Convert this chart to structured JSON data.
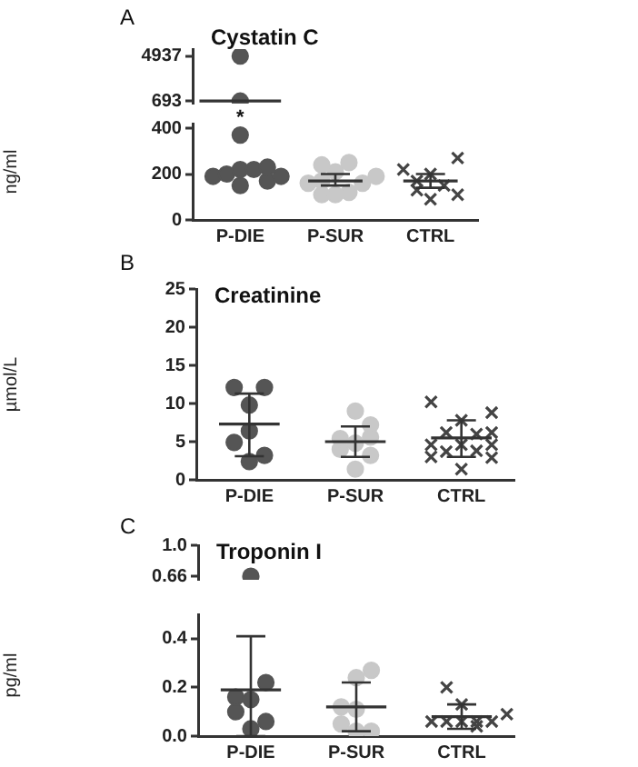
{
  "chart_data": [
    {
      "type": "scatter",
      "title": "Cystatin C",
      "annotations": [
        "A",
        {
          "text": "*",
          "x": "P-DIE",
          "y": 693
        }
      ],
      "categories": [
        null,
        null,
        null,
        "P-DIE",
        null,
        null,
        null,
        null,
        null,
        null,
        "P-SUR",
        null,
        null,
        null,
        null,
        null,
        null,
        "CTRL",
        null,
        null,
        null
      ],
      "ylim": [
        450,
        5600
      ],
      "yticks": [
        693,
        4937
      ],
      "tick_labels": "y",
      "series": [
        {
          "color": "#555555",
          "marker": "circle",
          "values": [
            null,
            null,
            null,
            4937,
            null,
            null,
            null,
            null,
            null,
            null,
            null,
            null,
            null,
            null,
            null,
            null,
            null,
            null,
            null,
            null,
            null
          ]
        },
        {
          "color": "#555555",
          "marker": "circle",
          "values": [
            null,
            null,
            null,
            693,
            null,
            null,
            null,
            null,
            null,
            null,
            null,
            null,
            null,
            null,
            null,
            null,
            null,
            null,
            null,
            null,
            null
          ]
        },
        {
          "type": "line",
          "color": "#333333",
          "marker": "none",
          "values": [
            693,
            693,
            693,
            693,
            693,
            693,
            693,
            null,
            null,
            null,
            null,
            null,
            null,
            null,
            null,
            null,
            null,
            null,
            null,
            null,
            null
          ]
        }
      ]
    },
    {
      "type": "scatter",
      "ylabel": "ng/ml",
      "categories": [
        null,
        null,
        null,
        "P-DIE",
        null,
        null,
        null,
        null,
        null,
        null,
        "P-SUR",
        null,
        null,
        null,
        null,
        null,
        null,
        "CTRL",
        null,
        null,
        null
      ],
      "ylim": [
        0,
        420
      ],
      "yticks": [
        0,
        200,
        400
      ],
      "series": [
        {
          "color": "#555555",
          "marker": "circle",
          "values": [
            null,
            190,
            200,
            220,
            220,
            230,
            null,
            null,
            null,
            null,
            null,
            null,
            null,
            null,
            null,
            null,
            null,
            null,
            null,
            null,
            null
          ]
        },
        {
          "color": "#555555",
          "marker": "circle",
          "values": [
            null,
            null,
            null,
            150,
            null,
            170,
            190,
            null,
            null,
            null,
            null,
            null,
            null,
            null,
            null,
            null,
            null,
            null,
            null,
            null,
            null
          ]
        },
        {
          "color": "#555555",
          "marker": "circle",
          "values": [
            null,
            null,
            null,
            370,
            null,
            null,
            null,
            null,
            null,
            null,
            null,
            null,
            null,
            null,
            null,
            null,
            null,
            null,
            null,
            null,
            null
          ]
        },
        {
          "color": "#c8c8c8",
          "marker": "circle",
          "values": [
            null,
            null,
            null,
            null,
            null,
            null,
            null,
            null,
            160,
            240,
            210,
            250,
            160,
            null,
            null,
            null,
            null,
            null,
            null,
            null,
            null
          ]
        },
        {
          "color": "#c8c8c8",
          "marker": "circle",
          "values": [
            null,
            null,
            null,
            null,
            null,
            null,
            null,
            null,
            null,
            170,
            110,
            null,
            null,
            190,
            null,
            null,
            null,
            null,
            null,
            null,
            null
          ]
        },
        {
          "color": "#c8c8c8",
          "marker": "circle",
          "values": [
            null,
            null,
            null,
            null,
            null,
            null,
            null,
            null,
            null,
            110,
            null,
            120,
            null,
            null,
            null,
            null,
            null,
            null,
            null,
            null,
            null
          ]
        },
        {
          "color": "#444444",
          "marker": "cross",
          "values": [
            null,
            null,
            null,
            null,
            null,
            null,
            null,
            null,
            null,
            null,
            null,
            null,
            null,
            null,
            null,
            220,
            130,
            200,
            150,
            270,
            null
          ]
        },
        {
          "color": "#444444",
          "marker": "cross",
          "values": [
            null,
            null,
            null,
            null,
            null,
            null,
            null,
            null,
            null,
            null,
            null,
            null,
            null,
            null,
            null,
            null,
            170,
            90,
            null,
            110,
            null
          ]
        },
        {
          "type": "line",
          "color": "#333333",
          "marker": "none",
          "values": [
            null,
            null,
            null,
            null,
            null,
            null,
            null,
            null,
            170,
            170,
            170,
            170,
            170,
            null,
            null,
            null,
            null,
            null,
            null,
            null,
            null
          ],
          "errors": [
            null,
            null,
            null,
            null,
            null,
            null,
            null,
            null,
            null,
            null,
            [
              150,
              200
            ],
            null,
            null,
            null,
            null,
            null,
            null,
            null,
            null,
            null,
            null
          ]
        },
        {
          "type": "line",
          "color": "#333333",
          "marker": "none",
          "values": [
            null,
            null,
            null,
            null,
            null,
            null,
            null,
            null,
            null,
            null,
            null,
            null,
            null,
            null,
            null,
            170,
            170,
            170,
            170,
            170,
            null
          ],
          "errors": [
            null,
            null,
            null,
            null,
            null,
            null,
            null,
            null,
            null,
            null,
            null,
            null,
            null,
            null,
            null,
            null,
            null,
            [
              140,
              200
            ],
            null,
            null,
            null
          ]
        }
      ]
    },
    {
      "type": "scatter",
      "title": "Creatinine",
      "ylabel": "µmol/L",
      "annotations": [
        "B"
      ],
      "categories": [
        null,
        null,
        null,
        "P-DIE",
        null,
        null,
        null,
        null,
        null,
        null,
        "P-SUR",
        null,
        null,
        null,
        null,
        null,
        null,
        "CTRL",
        null,
        null,
        null
      ],
      "ylim": [
        0,
        25
      ],
      "yticks": [
        0,
        5,
        10,
        15,
        20,
        25
      ],
      "series": [
        {
          "color": "#555555",
          "marker": "circle",
          "values": [
            null,
            null,
            12.1,
            9.8,
            12.1,
            null,
            null,
            null,
            null,
            null,
            null,
            null,
            null,
            null,
            null,
            null,
            null,
            null,
            null,
            null,
            null
          ]
        },
        {
          "color": "#555555",
          "marker": "circle",
          "values": [
            null,
            null,
            4.9,
            6.4,
            3.2,
            null,
            null,
            null,
            null,
            null,
            null,
            null,
            null,
            null,
            null,
            null,
            null,
            null,
            null,
            null,
            null
          ]
        },
        {
          "color": "#555555",
          "marker": "circle",
          "values": [
            null,
            null,
            null,
            2.4,
            null,
            null,
            null,
            null,
            null,
            null,
            null,
            null,
            null,
            null,
            null,
            null,
            null,
            null,
            null,
            null,
            null
          ]
        },
        {
          "color": "#c8c8c8",
          "marker": "circle",
          "values": [
            null,
            null,
            null,
            null,
            null,
            null,
            null,
            null,
            null,
            5.4,
            9.0,
            7.2,
            null,
            null,
            null,
            null,
            null,
            null,
            null,
            null,
            null
          ]
        },
        {
          "color": "#c8c8c8",
          "marker": "circle",
          "values": [
            null,
            null,
            null,
            null,
            null,
            null,
            null,
            null,
            null,
            4.0,
            4.8,
            5.6,
            null,
            null,
            null,
            null,
            null,
            null,
            null,
            null,
            null
          ]
        },
        {
          "color": "#c8c8c8",
          "marker": "circle",
          "values": [
            null,
            null,
            null,
            null,
            null,
            null,
            null,
            null,
            null,
            null,
            1.4,
            3.2,
            null,
            null,
            null,
            null,
            null,
            null,
            null,
            null,
            null
          ]
        },
        {
          "color": "#444444",
          "marker": "cross",
          "values": [
            null,
            null,
            null,
            null,
            null,
            null,
            null,
            null,
            null,
            null,
            null,
            null,
            null,
            null,
            null,
            10.2,
            6.2,
            7.8,
            6.0,
            8.8,
            null
          ]
        },
        {
          "color": "#444444",
          "marker": "cross",
          "values": [
            null,
            null,
            null,
            null,
            null,
            null,
            null,
            null,
            null,
            null,
            null,
            null,
            null,
            null,
            null,
            4.6,
            3.7,
            4.6,
            3.8,
            6.2,
            null
          ]
        },
        {
          "color": "#444444",
          "marker": "cross",
          "values": [
            null,
            null,
            null,
            null,
            null,
            null,
            null,
            null,
            null,
            null,
            null,
            null,
            null,
            null,
            null,
            3.0,
            null,
            1.4,
            null,
            4.6,
            null
          ]
        },
        {
          "color": "#444444",
          "marker": "cross",
          "values": [
            null,
            null,
            null,
            null,
            null,
            null,
            null,
            null,
            null,
            null,
            null,
            null,
            null,
            null,
            null,
            null,
            null,
            null,
            null,
            2.9,
            null
          ]
        },
        {
          "type": "line",
          "color": "#333333",
          "marker": "none",
          "values": [
            null,
            7.3,
            7.3,
            7.3,
            7.3,
            7.3,
            null,
            null,
            null,
            null,
            null,
            null,
            null,
            null,
            null,
            null,
            null,
            null,
            null,
            null,
            null
          ],
          "errors": [
            null,
            null,
            null,
            [
              3.1,
              11.3
            ],
            null,
            null,
            null,
            null,
            null,
            null,
            null,
            null,
            null,
            null,
            null,
            null,
            null,
            null,
            null,
            null,
            null
          ]
        },
        {
          "type": "line",
          "color": "#333333",
          "marker": "none",
          "values": [
            null,
            null,
            null,
            null,
            null,
            null,
            null,
            null,
            5.0,
            5.0,
            5.0,
            5.0,
            5.0,
            null,
            null,
            null,
            null,
            null,
            null,
            null,
            null
          ],
          "errors": [
            null,
            null,
            null,
            null,
            null,
            null,
            null,
            null,
            null,
            null,
            [
              3.0,
              7.0
            ],
            null,
            null,
            null,
            null,
            null,
            null,
            null,
            null,
            null,
            null
          ]
        },
        {
          "type": "line",
          "color": "#333333",
          "marker": "none",
          "values": [
            null,
            null,
            null,
            null,
            null,
            null,
            null,
            null,
            null,
            null,
            null,
            null,
            null,
            null,
            null,
            5.5,
            5.5,
            5.5,
            5.5,
            5.5,
            null
          ],
          "errors": [
            null,
            null,
            null,
            null,
            null,
            null,
            null,
            null,
            null,
            null,
            null,
            null,
            null,
            null,
            null,
            null,
            null,
            [
              3.0,
              7.8
            ],
            null,
            null,
            null
          ]
        }
      ]
    },
    {
      "type": "scatter",
      "title": "Troponin I",
      "annotations": [
        "C"
      ],
      "categories": [
        null,
        null,
        null,
        "P-DIE",
        null,
        null,
        null,
        null,
        null,
        null,
        "P-SUR",
        null,
        null,
        null,
        null,
        null,
        null,
        "CTRL",
        null,
        null,
        null
      ],
      "ylim": [
        0.62,
        1.0
      ],
      "yticks": [
        0.66,
        {
          "value": 1,
          "label": "1.0"
        }
      ],
      "tick_labels": "y",
      "series": [
        {
          "color": "#555555",
          "marker": "circle",
          "values": [
            null,
            null,
            null,
            0.66,
            null,
            null,
            null,
            null,
            null,
            null,
            null,
            null,
            null,
            null,
            null,
            null,
            null,
            null,
            null,
            null,
            null
          ]
        }
      ]
    },
    {
      "type": "scatter",
      "ylabel": "pg/ml",
      "categories": [
        null,
        null,
        null,
        "P-DIE",
        null,
        null,
        null,
        null,
        null,
        null,
        "P-SUR",
        null,
        null,
        null,
        null,
        null,
        null,
        "CTRL",
        null,
        null,
        null
      ],
      "ylim": [
        0,
        0.5
      ],
      "yticks": [
        {
          "value": 0,
          "label": "0.0"
        },
        0.2,
        0.4
      ],
      "series": [
        {
          "color": "#555555",
          "marker": "circle",
          "values": [
            null,
            null,
            0.16,
            0.15,
            0.22,
            null,
            null,
            null,
            null,
            null,
            null,
            null,
            null,
            null,
            null,
            null,
            null,
            null,
            null,
            null,
            null
          ]
        },
        {
          "color": "#555555",
          "marker": "circle",
          "values": [
            null,
            null,
            0.1,
            0.03,
            0.06,
            null,
            null,
            null,
            null,
            null,
            null,
            null,
            null,
            null,
            null,
            null,
            null,
            null,
            null,
            null,
            null
          ]
        },
        {
          "color": "#c8c8c8",
          "marker": "circle",
          "values": [
            null,
            null,
            null,
            null,
            null,
            null,
            null,
            null,
            null,
            0.12,
            0.24,
            0.27,
            null,
            null,
            null,
            null,
            null,
            null,
            null,
            null,
            null
          ]
        },
        {
          "color": "#c8c8c8",
          "marker": "circle",
          "values": [
            null,
            null,
            null,
            null,
            null,
            null,
            null,
            null,
            null,
            0.05,
            0.11,
            0.02,
            null,
            null,
            null,
            null,
            null,
            null,
            null,
            null,
            null
          ]
        },
        {
          "color": "#c8c8c8",
          "marker": "circle",
          "values": [
            null,
            null,
            null,
            null,
            null,
            null,
            null,
            null,
            null,
            null,
            0.02,
            null,
            null,
            null,
            null,
            null,
            null,
            null,
            null,
            null,
            null
          ]
        },
        {
          "color": "#444444",
          "marker": "cross",
          "values": [
            null,
            null,
            null,
            null,
            null,
            null,
            null,
            null,
            null,
            null,
            null,
            null,
            null,
            null,
            null,
            0.06,
            0.2,
            0.13,
            0.06,
            0.06,
            0.09
          ]
        },
        {
          "color": "#444444",
          "marker": "cross",
          "values": [
            null,
            null,
            null,
            null,
            null,
            null,
            null,
            null,
            null,
            null,
            null,
            null,
            null,
            null,
            null,
            null,
            0.06,
            0.06,
            0.04,
            null,
            null
          ]
        },
        {
          "type": "line",
          "color": "#333333",
          "marker": "none",
          "values": [
            null,
            0.19,
            0.19,
            0.19,
            0.19,
            0.19,
            null,
            null,
            null,
            null,
            null,
            null,
            null,
            null,
            null,
            null,
            null,
            null,
            null,
            null,
            null
          ],
          "errors": [
            null,
            null,
            null,
            [
              0,
              0.41
            ],
            null,
            null,
            null,
            null,
            null,
            null,
            null,
            null,
            null,
            null,
            null,
            null,
            null,
            null,
            null,
            null,
            null
          ]
        },
        {
          "type": "line",
          "color": "#333333",
          "marker": "none",
          "values": [
            null,
            null,
            null,
            null,
            null,
            null,
            null,
            null,
            0.12,
            0.12,
            0.12,
            0.12,
            0.12,
            null,
            null,
            null,
            null,
            null,
            null,
            null,
            null
          ],
          "errors": [
            null,
            null,
            null,
            null,
            null,
            null,
            null,
            null,
            null,
            null,
            [
              0.02,
              0.22
            ],
            null,
            null,
            null,
            null,
            null,
            null,
            null,
            null,
            null,
            null
          ]
        },
        {
          "type": "line",
          "color": "#333333",
          "marker": "none",
          "values": [
            null,
            null,
            null,
            null,
            null,
            null,
            null,
            null,
            null,
            null,
            null,
            null,
            null,
            null,
            null,
            0.08,
            0.08,
            0.08,
            0.08,
            0.08,
            null
          ],
          "errors": [
            null,
            null,
            null,
            null,
            null,
            null,
            null,
            null,
            null,
            null,
            null,
            null,
            null,
            null,
            null,
            null,
            null,
            [
              0.03,
              0.13
            ],
            null,
            null,
            null
          ]
        }
      ]
    }
  ]
}
